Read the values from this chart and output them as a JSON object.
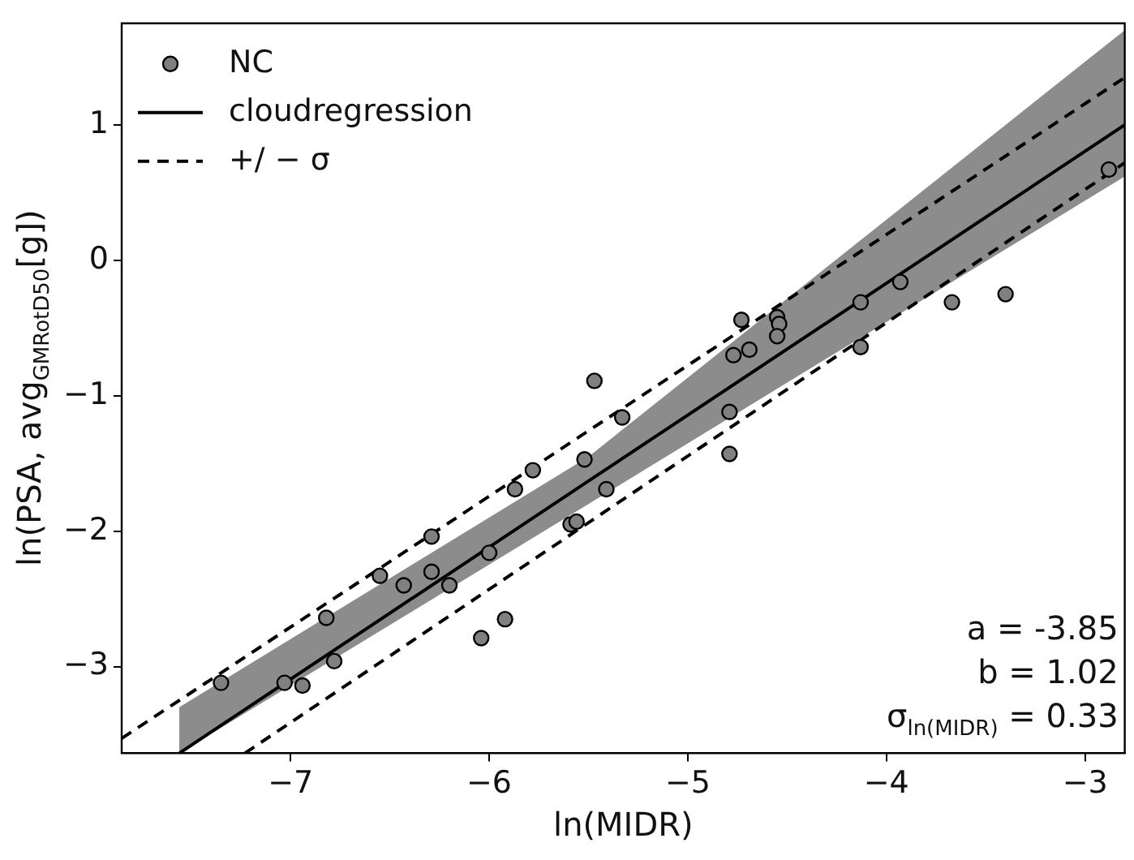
{
  "chart_data": {
    "type": "scatter",
    "xlabel": "ln(MIDR)",
    "ylabel": "ln(PSA, avg$_{GMRotD50}$[g])",
    "xlim": [
      -7.85,
      -2.8
    ],
    "ylim": [
      -3.64,
      1.75
    ],
    "xticks": [
      -7,
      -6,
      -5,
      -4,
      -3
    ],
    "yticks": [
      -3,
      -2,
      -1,
      0,
      1
    ],
    "grid": false,
    "legend": "top left",
    "annotations": [
      "a = -3.85",
      "b = 1.02",
      "σ$_{ln(MIDR)}$ = 0.33"
    ],
    "series": [
      {
        "name": "NC",
        "type": "scatter",
        "color": "#808080",
        "marker": "circle",
        "x": [
          -7.35,
          -7.03,
          -6.94,
          -6.82,
          -6.78,
          -6.55,
          -6.43,
          -6.29,
          -6.29,
          -6.2,
          -6.04,
          -6.0,
          -5.92,
          -5.87,
          -5.78,
          -5.59,
          -5.56,
          -5.52,
          -5.47,
          -5.41,
          -5.33,
          -4.79,
          -4.79,
          -4.77,
          -4.69,
          -4.73,
          -4.55,
          -4.54,
          -4.55,
          -4.13,
          -4.13,
          -3.93,
          -3.67,
          -3.4,
          -2.88
        ],
        "values": [
          -3.12,
          -3.12,
          -3.14,
          -2.64,
          -2.96,
          -2.33,
          -2.4,
          -2.04,
          -2.3,
          -2.4,
          -2.79,
          -2.16,
          -2.65,
          -1.69,
          -1.55,
          -1.95,
          -1.93,
          -1.47,
          -0.89,
          -1.69,
          -1.16,
          -1.12,
          -1.43,
          -0.7,
          -0.66,
          -0.44,
          -0.42,
          -0.47,
          -0.56,
          -0.31,
          -0.64,
          -0.16,
          -0.31,
          -0.25,
          0.67
        ]
      },
      {
        "name": "cloudregression",
        "type": "line",
        "color": "#000000",
        "line_style": "solid",
        "marker": "none",
        "x": [
          -7.56,
          -5.5,
          -2.8
        ],
        "values": [
          -3.64,
          -1.63,
          1.0
        ],
        "lower": [
          -3.64,
          -1.8,
          0.62
        ],
        "upper": [
          -3.3,
          -1.45,
          1.7
        ]
      },
      {
        "name": "+/ − σ",
        "type": "line",
        "color": "#000000",
        "line_style": "dashed",
        "marker": "none",
        "x": [
          -7.85,
          -2.8
        ],
        "values": [
          -3.53,
          1.35
        ]
      },
      {
        "type": "line",
        "color": "#000000",
        "line_style": "dashed",
        "marker": "none",
        "x": [
          -7.23,
          -2.8
        ],
        "values": [
          -3.64,
          0.72
        ]
      }
    ]
  }
}
